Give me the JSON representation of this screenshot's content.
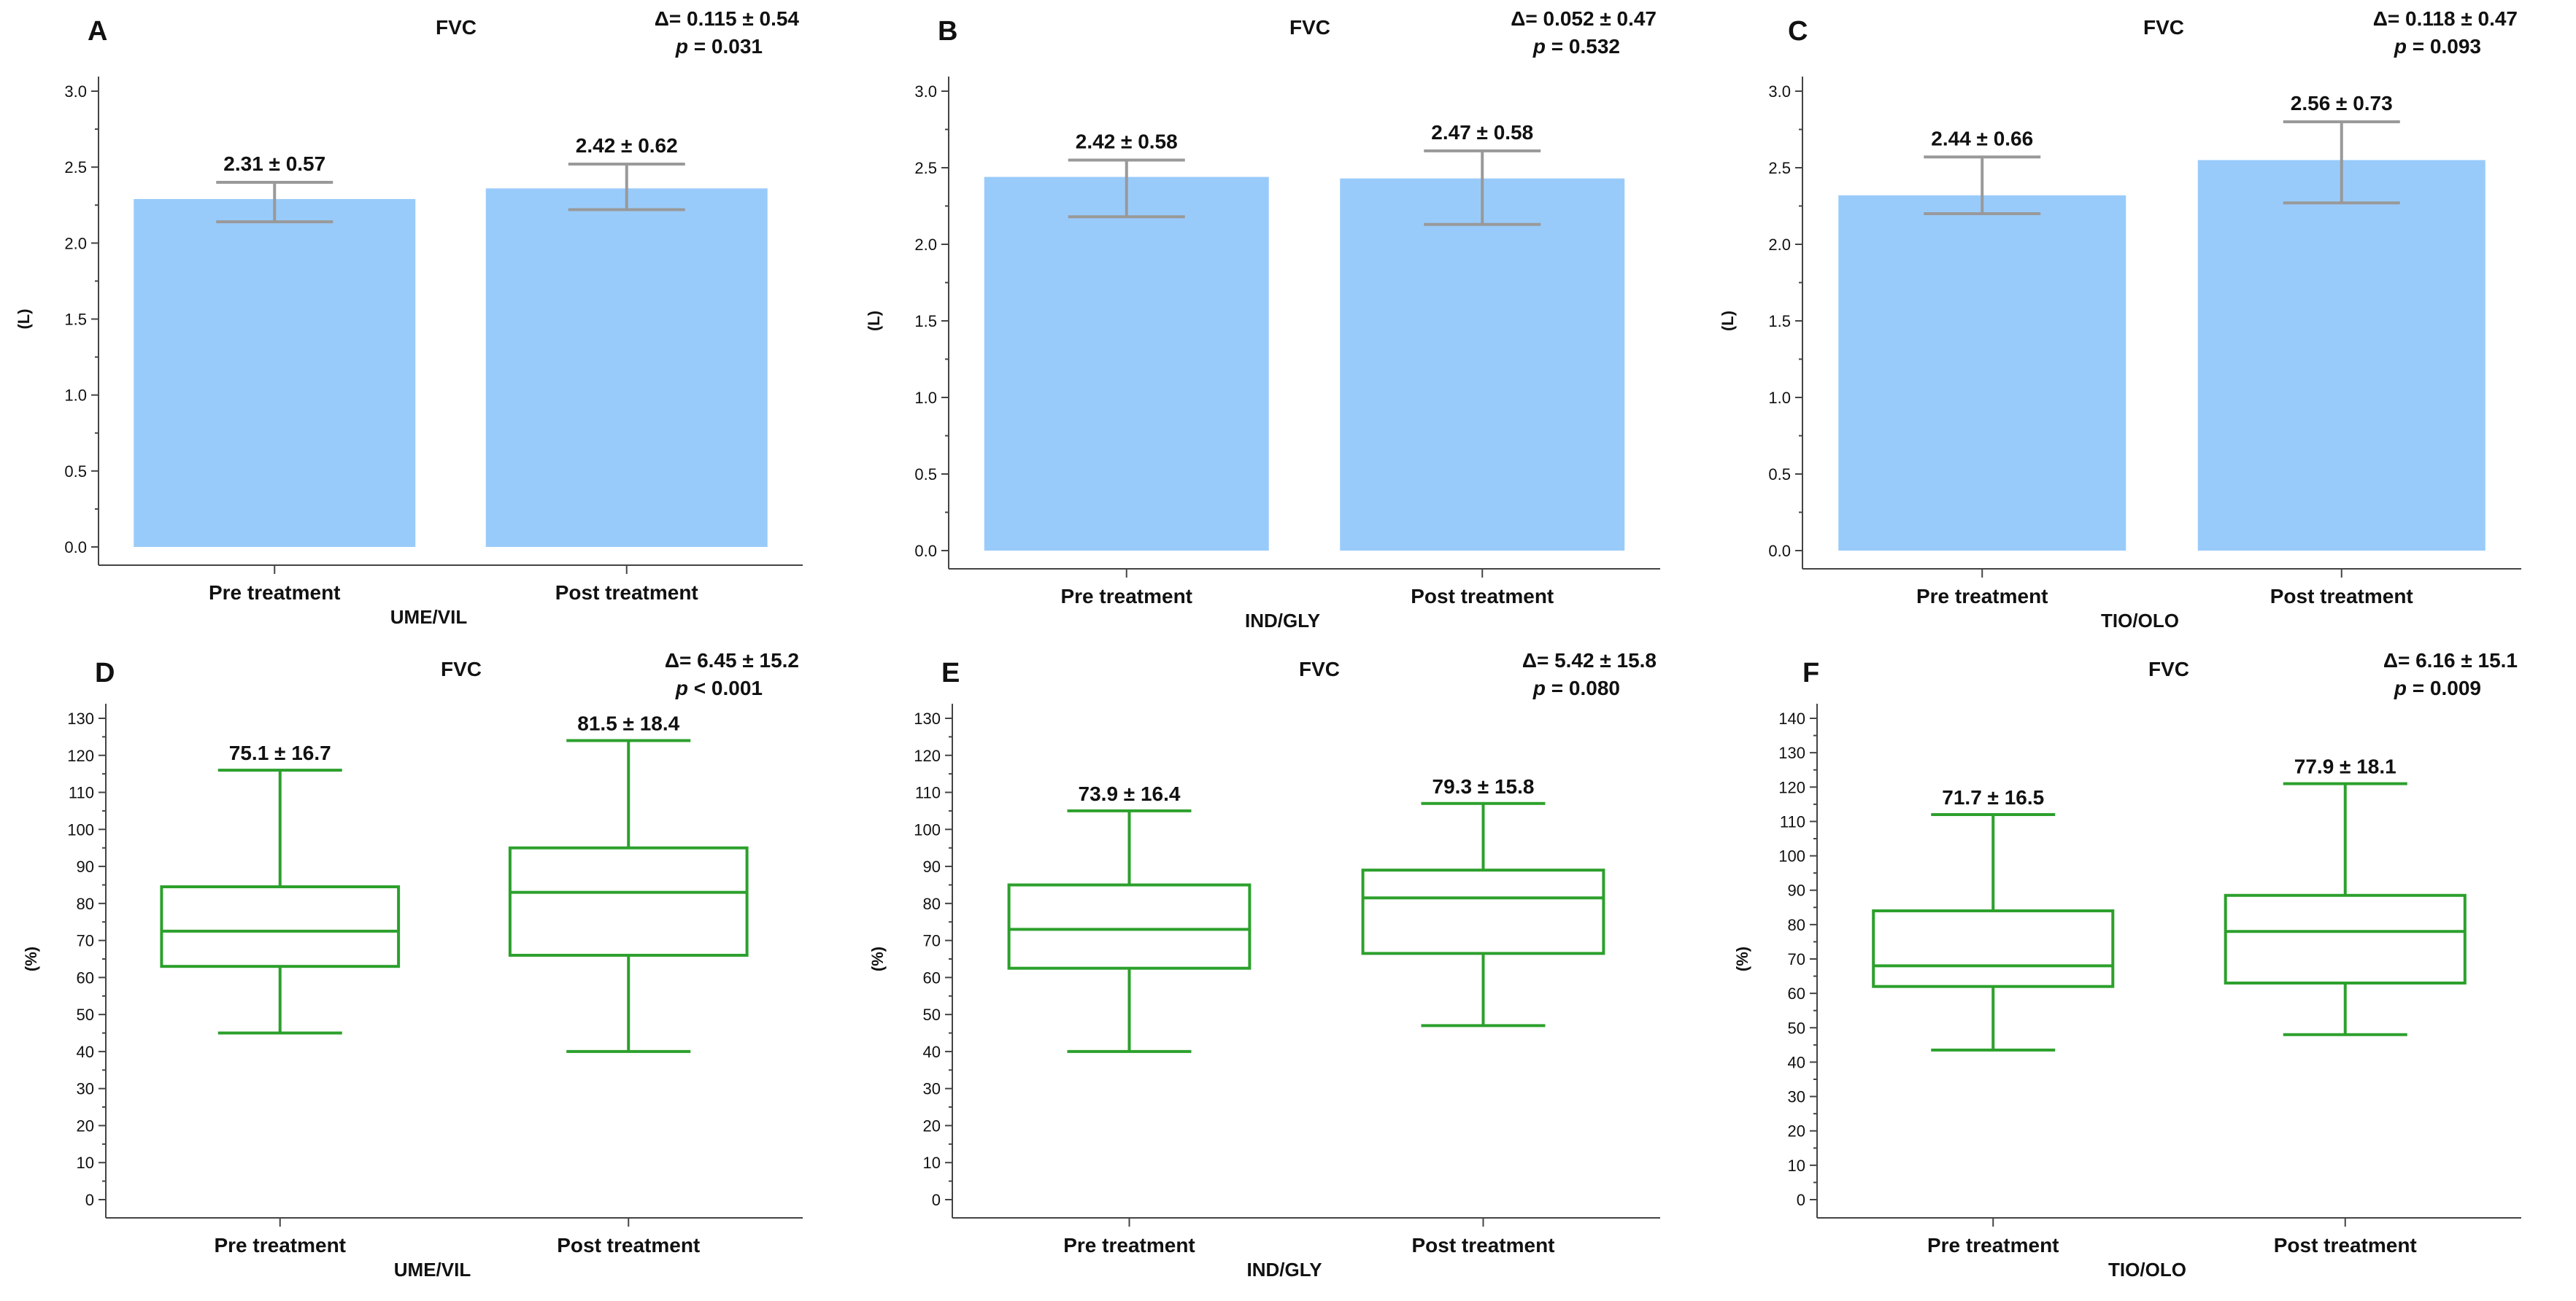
{
  "chart_data": [
    {
      "id": "A",
      "letter": "A",
      "type": "bar",
      "title": "FVC",
      "delta": "Δ= 0.115 ± 0.54",
      "p_prefix": "p",
      "p_value": " = 0.031",
      "ylabel": "(L)",
      "ylim": [
        0,
        3.0
      ],
      "step": 0.5,
      "decimals": 1,
      "xlabel": "UME/VIL",
      "categories": [
        "Pre treatment",
        "Post treatment"
      ],
      "values": [
        2.29,
        2.36
      ],
      "err_low": [
        2.14,
        2.22
      ],
      "err_high": [
        2.4,
        2.52
      ],
      "labels": [
        "2.31 ± 0.57",
        "2.42 ± 0.62"
      ],
      "color": "#99cbfa",
      "err_color": "#999999"
    },
    {
      "id": "B",
      "letter": "B",
      "type": "bar",
      "title": "FVC",
      "delta": "Δ= 0.052 ± 0.47",
      "p_prefix": "p",
      "p_value": " = 0.532",
      "ylabel": "(L)",
      "ylim": [
        0,
        3.0
      ],
      "step": 0.5,
      "decimals": 1,
      "xlabel": "IND/GLY",
      "categories": [
        "Pre treatment",
        "Post treatment"
      ],
      "values": [
        2.44,
        2.43
      ],
      "err_low": [
        2.18,
        2.13
      ],
      "err_high": [
        2.55,
        2.61
      ],
      "labels": [
        "2.42 ± 0.58",
        "2.47 ± 0.58"
      ],
      "color": "#99cbfa",
      "err_color": "#999999"
    },
    {
      "id": "C",
      "letter": "C",
      "type": "bar",
      "title": "FVC",
      "delta": "Δ= 0.118 ± 0.47",
      "p_prefix": "p",
      "p_value": " = 0.093",
      "ylabel": "(L)",
      "ylim": [
        0,
        3.0
      ],
      "step": 0.5,
      "decimals": 1,
      "xlabel": "TIO/OLO",
      "categories": [
        "Pre treatment",
        "Post treatment"
      ],
      "values": [
        2.32,
        2.55
      ],
      "err_low": [
        2.2,
        2.27
      ],
      "err_high": [
        2.57,
        2.8
      ],
      "labels": [
        "2.44 ± 0.66",
        "2.56 ± 0.73"
      ],
      "color": "#99cbfa",
      "err_color": "#999999"
    },
    {
      "id": "D",
      "letter": "D",
      "type": "box",
      "title": "FVC",
      "delta": "Δ= 6.45 ± 15.2",
      "p_prefix": "p",
      "p_value": " < 0.001",
      "ylabel": "(%)",
      "ylim": [
        0,
        130
      ],
      "step": 10,
      "decimals": 0,
      "xlabel": "UME/VIL",
      "categories": [
        "Pre treatment",
        "Post treatment"
      ],
      "boxes": [
        {
          "min": 45,
          "q1": 63,
          "median": 72.5,
          "q3": 84.5,
          "max": 116
        },
        {
          "min": 40,
          "q1": 66,
          "median": 83,
          "q3": 95,
          "max": 124
        }
      ],
      "labels": [
        "75.1 ± 16.7",
        "81.5 ± 18.4"
      ],
      "color": "#2ca02c"
    },
    {
      "id": "E",
      "letter": "E",
      "type": "box",
      "title": "FVC",
      "delta": "Δ= 5.42 ± 15.8",
      "p_prefix": "p",
      "p_value": " = 0.080",
      "ylabel": "(%)",
      "ylim": [
        0,
        130
      ],
      "step": 10,
      "decimals": 0,
      "xlabel": "IND/GLY",
      "categories": [
        "Pre treatment",
        "Post treatment"
      ],
      "boxes": [
        {
          "min": 40,
          "q1": 62.5,
          "median": 73,
          "q3": 85,
          "max": 105
        },
        {
          "min": 47,
          "q1": 66.5,
          "median": 81.5,
          "q3": 89,
          "max": 107
        }
      ],
      "labels": [
        "73.9 ± 16.4",
        "79.3 ± 15.8"
      ],
      "color": "#2ca02c"
    },
    {
      "id": "F",
      "letter": "F",
      "type": "box",
      "title": "FVC",
      "delta": "Δ= 6.16 ± 15.1",
      "p_prefix": "p",
      "p_value": " = 0.009",
      "ylabel": "(%)",
      "ylim": [
        0,
        140
      ],
      "step": 10,
      "decimals": 0,
      "xlabel": "TIO/OLO",
      "categories": [
        "Pre treatment",
        "Post treatment"
      ],
      "boxes": [
        {
          "min": 43.5,
          "q1": 62,
          "median": 68,
          "q3": 84,
          "max": 112
        },
        {
          "min": 48,
          "q1": 63,
          "median": 78,
          "q3": 88.5,
          "max": 121
        }
      ],
      "labels": [
        "71.7 ± 16.5",
        "77.9 ± 18.1"
      ],
      "color": "#2ca02c"
    }
  ]
}
